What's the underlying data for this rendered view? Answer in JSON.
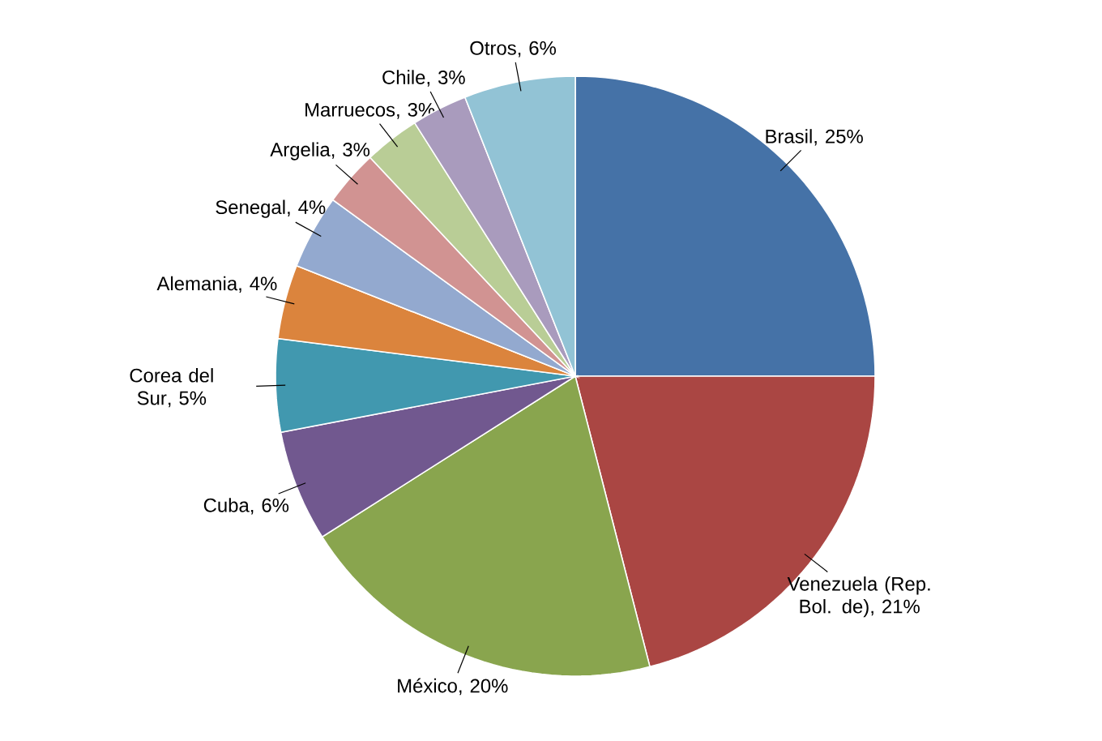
{
  "chart_data": {
    "type": "pie",
    "categories": [
      "Brasil",
      "Venezuela (Rep. Bol. de)",
      "México",
      "Cuba",
      "Corea del Sur",
      "Alemania",
      "Senegal",
      "Argelia",
      "Marruecos",
      "Chile",
      "Otros"
    ],
    "values": [
      25,
      21,
      20,
      6,
      5,
      4,
      4,
      3,
      3,
      3,
      6
    ],
    "value_labels": [
      ", 25%",
      ", 21%",
      ", 20%",
      ", 6%",
      ", 5%",
      ", 4%",
      ", 4%",
      ", 3%",
      ", 3%",
      ", 3%",
      ", 6%"
    ],
    "colors": [
      "#4572a7",
      "#aa4643",
      "#89a54e",
      "#71588f",
      "#4198af",
      "#db843d",
      "#93a9cf",
      "#d19392",
      "#b9cd96",
      "#a99bbd",
      "#92c3d5"
    ]
  }
}
